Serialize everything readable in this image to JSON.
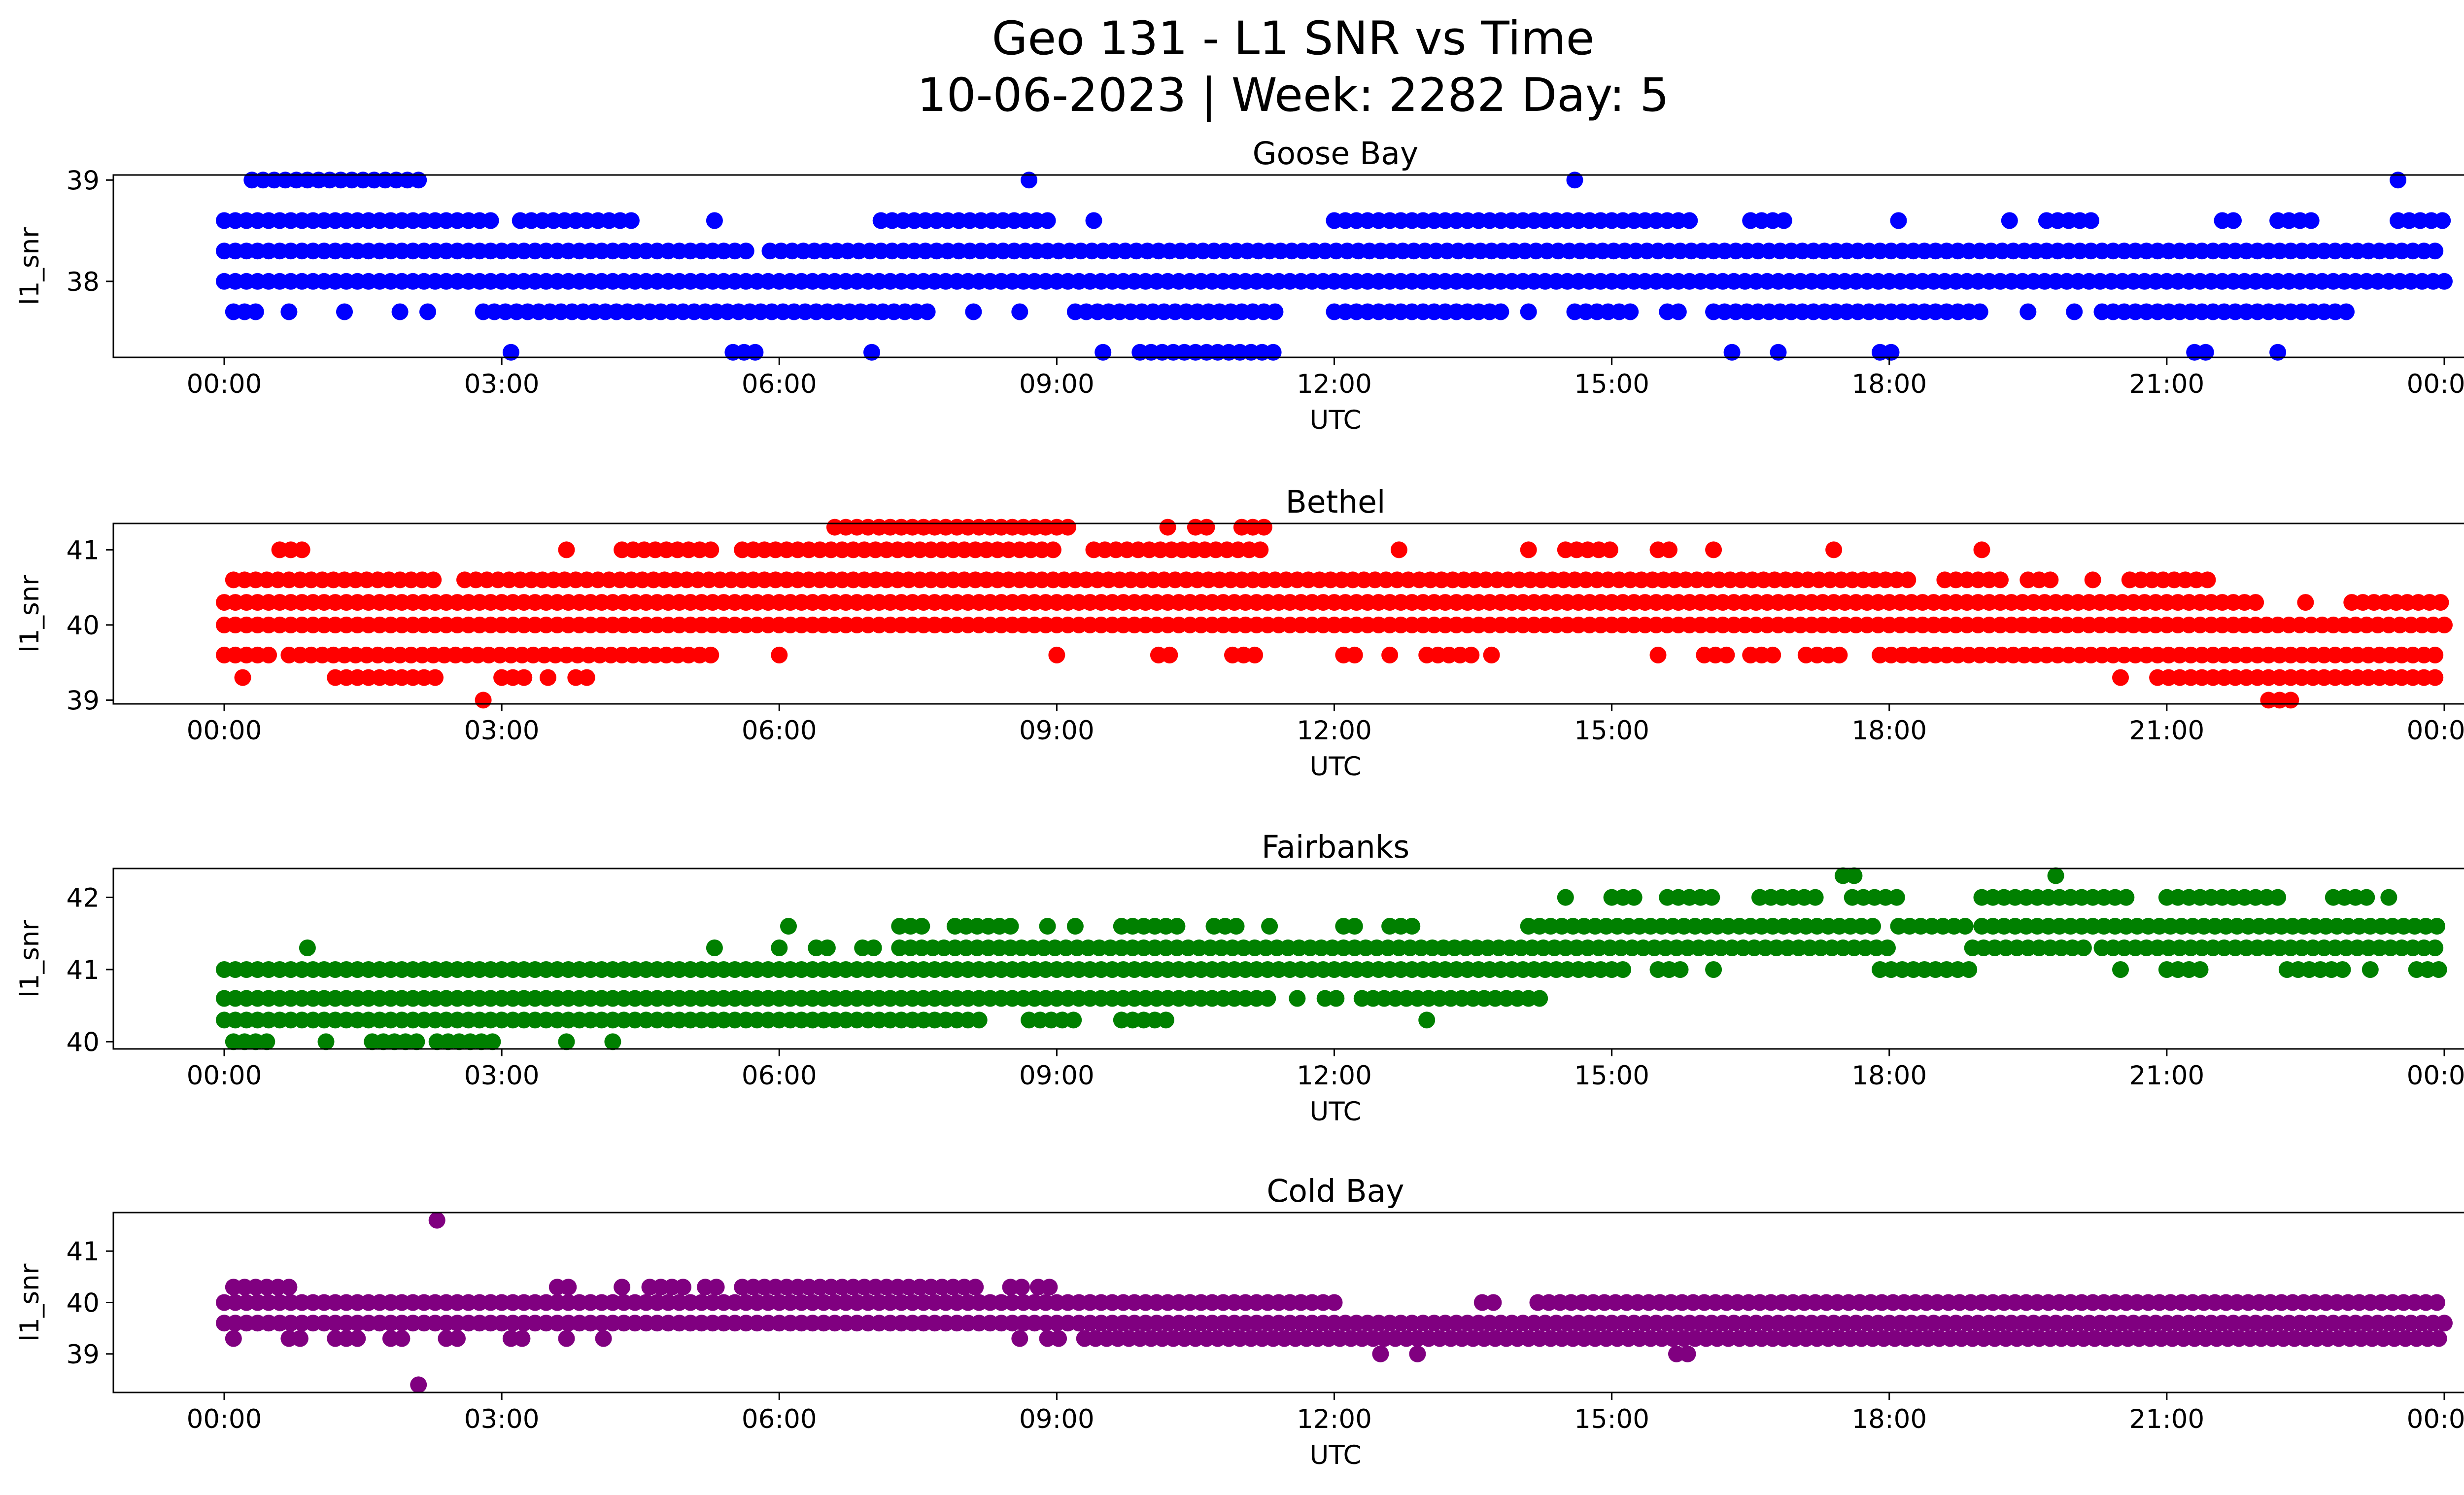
{
  "title_line1": "Geo 131 - L1 SNR vs Time",
  "title_line2": "10-06-2023 | Week: 2282 Day: 5",
  "chart_data": [
    {
      "type": "scatter",
      "title": "Goose Bay",
      "xlabel": "UTC",
      "ylabel": "l1_snr",
      "color": "#0000ff",
      "xlim": [
        0,
        24
      ],
      "ylim": [
        37.25,
        39.05
      ],
      "xticks": [
        "00:00",
        "03:00",
        "06:00",
        "09:00",
        "12:00",
        "15:00",
        "18:00",
        "21:00",
        "00:00"
      ],
      "yticks": [
        38,
        39
      ],
      "x_units": "hours UTC",
      "levels": [
        {
          "y": 38.0,
          "ranges": [
            [
              0.0,
              24.0
            ]
          ]
        },
        {
          "y": 38.3,
          "ranges": [
            [
              0.0,
              5.7
            ],
            [
              5.9,
              24.0
            ]
          ]
        },
        {
          "y": 38.6,
          "ranges": [
            [
              0.0,
              2.9
            ],
            [
              3.2,
              4.5
            ],
            [
              5.3,
              5.3
            ],
            [
              7.1,
              8.9
            ],
            [
              9.4,
              9.4
            ],
            [
              12.0,
              15.9
            ],
            [
              16.5,
              16.9
            ],
            [
              18.1,
              18.1
            ],
            [
              19.3,
              19.3
            ],
            [
              19.7,
              20.2
            ],
            [
              21.6,
              21.8
            ],
            [
              22.2,
              22.6
            ],
            [
              23.5,
              24.0
            ]
          ]
        },
        {
          "y": 37.7,
          "ranges": [
            [
              0.1,
              0.4
            ],
            [
              0.7,
              0.7
            ],
            [
              1.3,
              1.3
            ],
            [
              1.9,
              1.9
            ],
            [
              2.2,
              2.2
            ],
            [
              2.8,
              7.7
            ],
            [
              8.1,
              8.1
            ],
            [
              8.6,
              8.6
            ],
            [
              9.2,
              11.4
            ],
            [
              12.0,
              13.8
            ],
            [
              14.1,
              14.1
            ],
            [
              14.6,
              15.2
            ],
            [
              15.6,
              15.8
            ],
            [
              16.1,
              19.0
            ],
            [
              19.5,
              19.5
            ],
            [
              20.0,
              20.0
            ],
            [
              20.3,
              23.0
            ]
          ]
        },
        {
          "y": 39.0,
          "ranges": [
            [
              0.3,
              2.2
            ],
            [
              8.7,
              8.7
            ],
            [
              14.6,
              14.6
            ],
            [
              23.5,
              23.6
            ]
          ]
        },
        {
          "y": 37.3,
          "ranges": [
            [
              3.1,
              3.1
            ],
            [
              5.5,
              5.8
            ],
            [
              7.0,
              7.0
            ],
            [
              9.5,
              9.5
            ],
            [
              9.9,
              11.4
            ],
            [
              16.3,
              16.4
            ],
            [
              16.8,
              16.8
            ],
            [
              17.9,
              18.1
            ],
            [
              21.3,
              21.5
            ],
            [
              22.2,
              22.2
            ]
          ]
        }
      ]
    },
    {
      "type": "scatter",
      "title": "Bethel",
      "xlabel": "UTC",
      "ylabel": "l1_snr",
      "color": "#ff0000",
      "xlim": [
        0,
        24
      ],
      "ylim": [
        38.95,
        41.35
      ],
      "xticks": [
        "00:00",
        "03:00",
        "06:00",
        "09:00",
        "12:00",
        "15:00",
        "18:00",
        "21:00",
        "00:00"
      ],
      "yticks": [
        39,
        40,
        41
      ],
      "x_units": "hours UTC",
      "levels": [
        {
          "y": 40.0,
          "ranges": [
            [
              0.0,
              24.0
            ]
          ]
        },
        {
          "y": 40.3,
          "ranges": [
            [
              0.0,
              22.0
            ],
            [
              22.5,
              22.6
            ],
            [
              23.0,
              24.0
            ]
          ]
        },
        {
          "y": 40.6,
          "ranges": [
            [
              0.1,
              2.3
            ],
            [
              2.6,
              18.3
            ],
            [
              18.6,
              19.2
            ],
            [
              19.5,
              19.8
            ],
            [
              20.2,
              20.3
            ],
            [
              20.6,
              21.5
            ]
          ]
        },
        {
          "y": 39.6,
          "ranges": [
            [
              0.0,
              0.5
            ],
            [
              0.7,
              5.3
            ],
            [
              6.0,
              6.1
            ],
            [
              9.0,
              9.1
            ],
            [
              10.1,
              10.3
            ],
            [
              10.9,
              11.2
            ],
            [
              12.1,
              12.3
            ],
            [
              12.6,
              12.7
            ],
            [
              13.0,
              13.5
            ],
            [
              13.7,
              13.7
            ],
            [
              15.5,
              15.5
            ],
            [
              16.0,
              16.3
            ],
            [
              16.5,
              16.8
            ],
            [
              17.1,
              17.5
            ],
            [
              17.9,
              24.0
            ]
          ]
        },
        {
          "y": 41.0,
          "ranges": [
            [
              0.6,
              0.9
            ],
            [
              3.7,
              3.7
            ],
            [
              4.3,
              5.3
            ],
            [
              5.6,
              9.0
            ],
            [
              9.4,
              11.2
            ],
            [
              12.7,
              12.7
            ],
            [
              14.1,
              14.2
            ],
            [
              14.5,
              15.0
            ],
            [
              15.5,
              15.7
            ],
            [
              16.1,
              16.1
            ],
            [
              17.4,
              17.5
            ],
            [
              19.0,
              19.0
            ]
          ]
        },
        {
          "y": 41.3,
          "ranges": [
            [
              6.6,
              9.2
            ],
            [
              10.2,
              10.2
            ],
            [
              10.5,
              10.7
            ],
            [
              11.0,
              11.3
            ]
          ]
        },
        {
          "y": 39.3,
          "ranges": [
            [
              0.2,
              0.3
            ],
            [
              1.2,
              2.3
            ],
            [
              3.0,
              3.3
            ],
            [
              3.5,
              3.5
            ],
            [
              3.8,
              4.0
            ],
            [
              20.5,
              20.5
            ],
            [
              20.9,
              24.0
            ]
          ]
        },
        {
          "y": 39.0,
          "ranges": [
            [
              2.8,
              2.8
            ],
            [
              22.1,
              22.4
            ]
          ]
        }
      ]
    },
    {
      "type": "scatter",
      "title": "Fairbanks",
      "xlabel": "UTC",
      "ylabel": "l1_snr",
      "color": "#008000",
      "xlim": [
        0,
        24
      ],
      "ylim": [
        39.9,
        42.4
      ],
      "xticks": [
        "00:00",
        "03:00",
        "06:00",
        "09:00",
        "12:00",
        "15:00",
        "18:00",
        "21:00",
        "00:00"
      ],
      "yticks": [
        40,
        41,
        42
      ],
      "x_units": "hours UTC",
      "levels": [
        {
          "y": 40.3,
          "ranges": [
            [
              0.0,
              8.2
            ],
            [
              8.7,
              9.2
            ],
            [
              9.7,
              10.2
            ],
            [
              13.0,
              13.0
            ]
          ]
        },
        {
          "y": 40.6,
          "ranges": [
            [
              0.0,
              11.3
            ],
            [
              11.6,
              11.6
            ],
            [
              11.9,
              12.1
            ],
            [
              12.3,
              14.3
            ]
          ]
        },
        {
          "y": 41.0,
          "ranges": [
            [
              0.0,
              15.2
            ],
            [
              15.5,
              15.8
            ],
            [
              16.1,
              16.1
            ],
            [
              17.9,
              18.9
            ],
            [
              20.5,
              20.5
            ],
            [
              21.0,
              21.4
            ],
            [
              22.3,
              23.0
            ],
            [
              23.2,
              23.3
            ],
            [
              23.7,
              24.0
            ]
          ]
        },
        {
          "y": 41.3,
          "ranges": [
            [
              0.9,
              0.9
            ],
            [
              5.3,
              5.3
            ],
            [
              6.0,
              6.1
            ],
            [
              6.4,
              6.6
            ],
            [
              6.9,
              7.1
            ],
            [
              7.3,
              18.0
            ],
            [
              18.9,
              20.1
            ],
            [
              20.3,
              24.0
            ]
          ]
        },
        {
          "y": 41.6,
          "ranges": [
            [
              6.1,
              6.1
            ],
            [
              7.3,
              7.6
            ],
            [
              7.9,
              8.5
            ],
            [
              8.9,
              8.9
            ],
            [
              9.2,
              9.3
            ],
            [
              9.7,
              10.3
            ],
            [
              10.7,
              11.0
            ],
            [
              11.3,
              11.4
            ],
            [
              12.1,
              12.3
            ],
            [
              12.6,
              12.9
            ],
            [
              14.1,
              17.9
            ],
            [
              18.1,
              18.9
            ],
            [
              19.0,
              24.0
            ]
          ]
        },
        {
          "y": 42.0,
          "ranges": [
            [
              14.5,
              14.5
            ],
            [
              15.0,
              15.3
            ],
            [
              15.6,
              16.1
            ],
            [
              16.6,
              17.3
            ],
            [
              17.6,
              18.1
            ],
            [
              19.0,
              20.6
            ],
            [
              21.0,
              22.2
            ],
            [
              22.8,
              23.2
            ],
            [
              23.4,
              23.5
            ]
          ]
        },
        {
          "y": 42.3,
          "ranges": [
            [
              17.5,
              17.7
            ],
            [
              19.8,
              19.9
            ]
          ]
        },
        {
          "y": 40.0,
          "ranges": [
            [
              0.1,
              0.5
            ],
            [
              1.1,
              1.1
            ],
            [
              1.6,
              2.1
            ],
            [
              2.3,
              3.0
            ],
            [
              3.7,
              3.7
            ],
            [
              4.2,
              4.2
            ]
          ]
        }
      ]
    },
    {
      "type": "scatter",
      "title": "Cold Bay",
      "xlabel": "UTC",
      "ylabel": "l1_snr",
      "color": "#800080",
      "xlim": [
        0,
        24
      ],
      "ylim": [
        38.25,
        41.75
      ],
      "xticks": [
        "00:00",
        "03:00",
        "06:00",
        "09:00",
        "12:00",
        "15:00",
        "18:00",
        "21:00",
        "00:00"
      ],
      "yticks": [
        39,
        40,
        41
      ],
      "x_units": "hours UTC",
      "levels": [
        {
          "y": 39.6,
          "ranges": [
            [
              0.0,
              24.0
            ]
          ]
        },
        {
          "y": 40.0,
          "ranges": [
            [
              0.0,
              11.9
            ],
            [
              12.0,
              12.0
            ],
            [
              13.6,
              13.8
            ],
            [
              14.2,
              24.0
            ]
          ]
        },
        {
          "y": 40.3,
          "ranges": [
            [
              0.1,
              0.7
            ],
            [
              3.6,
              3.8
            ],
            [
              4.3,
              4.3
            ],
            [
              4.6,
              5.0
            ],
            [
              5.2,
              5.4
            ],
            [
              5.6,
              8.2
            ],
            [
              8.5,
              8.7
            ],
            [
              8.8,
              9.0
            ]
          ]
        },
        {
          "y": 39.3,
          "ranges": [
            [
              0.1,
              0.2
            ],
            [
              0.7,
              0.9
            ],
            [
              1.2,
              1.5
            ],
            [
              1.8,
              2.0
            ],
            [
              2.4,
              2.6
            ],
            [
              3.1,
              3.3
            ],
            [
              3.7,
              3.8
            ],
            [
              4.1,
              4.1
            ],
            [
              8.6,
              8.6
            ],
            [
              8.9,
              9.1
            ],
            [
              9.3,
              24.0
            ]
          ]
        },
        {
          "y": 39.0,
          "ranges": [
            [
              12.5,
              12.5
            ],
            [
              12.9,
              12.9
            ],
            [
              15.7,
              15.9
            ]
          ]
        },
        {
          "y": 41.6,
          "ranges": [
            [
              2.3,
              2.3
            ]
          ]
        },
        {
          "y": 38.4,
          "ranges": [
            [
              2.1,
              2.1
            ]
          ]
        }
      ]
    }
  ]
}
